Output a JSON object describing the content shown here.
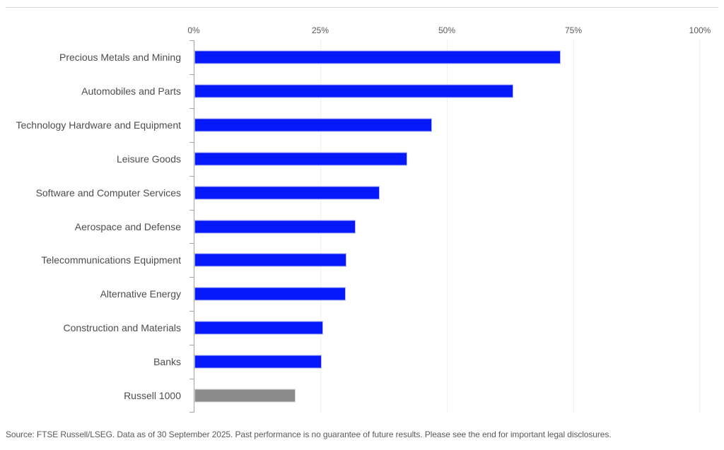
{
  "chart_data": {
    "type": "bar",
    "orientation": "horizontal",
    "title": "",
    "xlabel": "",
    "ylabel": "",
    "xlim": [
      0,
      100
    ],
    "x_tick_labels": [
      "0%",
      "25%",
      "50%",
      "75%",
      "100%"
    ],
    "x_tick_values": [
      0,
      25,
      50,
      75,
      100
    ],
    "grid": "vertical-dotted",
    "axis_position": "top",
    "categories": [
      "Precious Metals and Mining",
      "Automobiles and Parts",
      "Technology Hardware and Equipment",
      "Leisure Goods",
      "Software and Computer Services",
      "Aerospace and Defense",
      "Telecommunications Equipment",
      "Alternative Energy",
      "Construction and Materials",
      "Banks",
      "Russell 1000"
    ],
    "values": [
      72.3,
      63.0,
      46.9,
      42.0,
      36.6,
      31.8,
      30.0,
      29.9,
      25.4,
      25.1,
      20.0
    ],
    "unit": "%",
    "highlight_category": "Russell 1000",
    "colors": {
      "primary_bar": "#0519FA",
      "highlight_bar": "#8C8C8C",
      "gridline": "#e2e2e2",
      "axis": "#a3a3a3",
      "label_text": "#4d4d4d",
      "tick_text": "#595959"
    }
  },
  "footer": {
    "source_note": "Source: FTSE Russell/LSEG. Data as of 30 September 2025. Past performance is no guarantee of future results. Please see the end for important legal disclosures."
  }
}
